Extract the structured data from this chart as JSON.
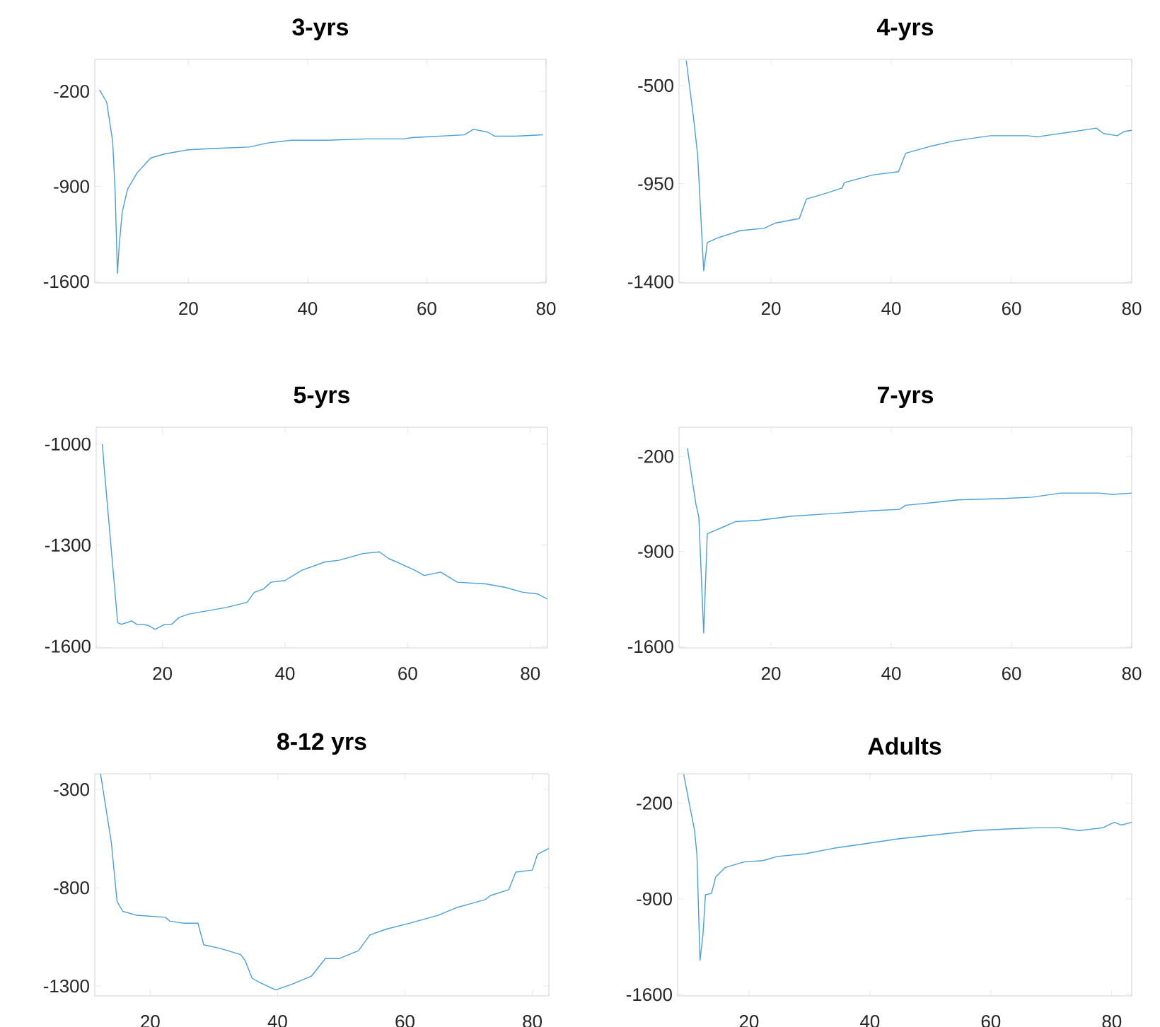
{
  "chart_data": [
    {
      "type": "line",
      "title": "3-yrs",
      "color": "#4a9fd8",
      "xlim": [
        4.3,
        80
      ],
      "ylim": [
        -1610,
        35
      ],
      "xticks": [
        20,
        40,
        60,
        80
      ],
      "yticks": [
        -1600,
        -900,
        -200
      ],
      "x": [
        5.1,
        6.3,
        7.3,
        7.7,
        8.1,
        8.4,
        8.9,
        9.8,
        11.4,
        13.7,
        16.1,
        20,
        24.7,
        30.2,
        33.3,
        37.3,
        43.5,
        49.8,
        56.1,
        57.6,
        66.3,
        67.8,
        70.2,
        71.4,
        74.9,
        79.5
      ],
      "values": [
        -190,
        -280,
        -570,
        -920,
        -1540,
        -1330,
        -1090,
        -920,
        -800,
        -690,
        -660,
        -630,
        -620,
        -610,
        -580,
        -560,
        -560,
        -550,
        -550,
        -540,
        -520,
        -480,
        -500,
        -530,
        -530,
        -520
      ]
    },
    {
      "type": "line",
      "title": "4-yrs",
      "color": "#4a9fd8",
      "xlim": [
        4.7,
        80
      ],
      "ylim": [
        -1405,
        -380
      ],
      "xticks": [
        20,
        40,
        60,
        80
      ],
      "yticks": [
        -1400,
        -950,
        -500
      ],
      "x": [
        5.9,
        7.1,
        7.8,
        8.8,
        9.4,
        11,
        14.9,
        18.8,
        20.8,
        24.7,
        25.9,
        29,
        31.8,
        32.2,
        36.9,
        41.2,
        42.4,
        46.3,
        50.2,
        56.5,
        62.7,
        64.3,
        70.6,
        74.1,
        75.3,
        77.6,
        78.8,
        80
      ],
      "values": [
        -385,
        -645,
        -820,
        -1350,
        -1220,
        -1200,
        -1165,
        -1155,
        -1130,
        -1110,
        -1020,
        -995,
        -970,
        -945,
        -910,
        -895,
        -810,
        -780,
        -755,
        -730,
        -730,
        -735,
        -710,
        -695,
        -720,
        -730,
        -710,
        -705
      ]
    },
    {
      "type": "line",
      "title": "5-yrs",
      "color": "#4a9fd8",
      "xlim": [
        9.2,
        82.8
      ],
      "ylim": [
        -1605,
        -950
      ],
      "xticks": [
        20,
        40,
        60,
        80
      ],
      "yticks": [
        -1600,
        -1300,
        -1000
      ],
      "x": [
        10.2,
        10.5,
        12.7,
        13.3,
        14.2,
        15,
        15.8,
        16.9,
        17.9,
        18.8,
        20.4,
        21.5,
        22.7,
        24.2,
        27.3,
        30.4,
        33.8,
        35,
        36.5,
        37.7,
        40,
        42.7,
        46.5,
        48.8,
        52.7,
        55.4,
        56.9,
        58.8,
        61.2,
        62.7,
        65.4,
        68.1,
        72.7,
        75.8,
        78.8,
        81.2,
        82.8
      ],
      "values": [
        -1000,
        -1070,
        -1530,
        -1535,
        -1530,
        -1525,
        -1535,
        -1535,
        -1540,
        -1550,
        -1535,
        -1535,
        -1515,
        -1505,
        -1495,
        -1485,
        -1470,
        -1440,
        -1430,
        -1410,
        -1405,
        -1375,
        -1350,
        -1345,
        -1325,
        -1320,
        -1340,
        -1355,
        -1375,
        -1390,
        -1380,
        -1410,
        -1415,
        -1425,
        -1440,
        -1445,
        -1460
      ]
    },
    {
      "type": "line",
      "title": "7-yrs",
      "color": "#4a9fd8",
      "xlim": [
        4.7,
        80
      ],
      "ylim": [
        -1610,
        15
      ],
      "xticks": [
        20,
        40,
        60,
        80
      ],
      "yticks": [
        -1600,
        -900,
        -200
      ],
      "x": [
        6.1,
        7.5,
        8,
        8.8,
        9.4,
        11,
        14.1,
        18,
        23.5,
        30.6,
        36.9,
        41.4,
        42.4,
        47.1,
        51,
        58.8,
        63.5,
        68.2,
        74.5,
        76.8,
        80
      ],
      "values": [
        -140,
        -550,
        -650,
        -1500,
        -770,
        -740,
        -680,
        -670,
        -640,
        -620,
        -600,
        -590,
        -560,
        -540,
        -520,
        -510,
        -500,
        -470,
        -470,
        -480,
        -470
      ]
    },
    {
      "type": "line",
      "title": "8-12 yrs",
      "color": "#4a9fd8",
      "xlim": [
        11.3,
        82.6
      ],
      "ylim": [
        -1350,
        -220
      ],
      "xticks": [
        20,
        40,
        60,
        80
      ],
      "yticks": [
        -1300,
        -800,
        -300
      ],
      "x": [
        12.2,
        13.9,
        14.8,
        15.7,
        17.9,
        22.4,
        23.1,
        25.3,
        27.5,
        28.4,
        31.2,
        34.2,
        34.9,
        36,
        37.1,
        39.7,
        42.3,
        45.3,
        47.5,
        49.7,
        52.7,
        54.5,
        57.1,
        60.8,
        65.2,
        68.2,
        70.4,
        72.6,
        73.4,
        76.3,
        77.4,
        80,
        80.8,
        82.6
      ],
      "values": [
        -220,
        -570,
        -870,
        -920,
        -940,
        -950,
        -970,
        -980,
        -980,
        -1090,
        -1110,
        -1140,
        -1170,
        -1260,
        -1280,
        -1320,
        -1290,
        -1250,
        -1160,
        -1160,
        -1120,
        -1040,
        -1010,
        -980,
        -940,
        -900,
        -880,
        -860,
        -840,
        -810,
        -720,
        -710,
        -630,
        -600
      ]
    },
    {
      "type": "line",
      "title": "Adults",
      "color": "#4a9fd8",
      "xlim": [
        8.2,
        83.3
      ],
      "ylim": [
        -1610,
        15
      ],
      "xticks": [
        20,
        40,
        60,
        80
      ],
      "yticks": [
        -1600,
        -900,
        -200
      ],
      "x": [
        9.2,
        10.3,
        11,
        11.4,
        11.9,
        12.4,
        12.8,
        13.8,
        14.5,
        16.1,
        19.2,
        22.3,
        24.7,
        29.4,
        34,
        38.7,
        44.9,
        51.2,
        57.4,
        62.1,
        67.5,
        71.4,
        74.6,
        78.5,
        80.4,
        81.6,
        83.3
      ],
      "values": [
        10,
        -240,
        -400,
        -580,
        -1350,
        -1160,
        -870,
        -860,
        -740,
        -670,
        -630,
        -620,
        -590,
        -570,
        -530,
        -500,
        -460,
        -430,
        -400,
        -390,
        -380,
        -380,
        -400,
        -380,
        -340,
        -360,
        -340
      ]
    }
  ]
}
